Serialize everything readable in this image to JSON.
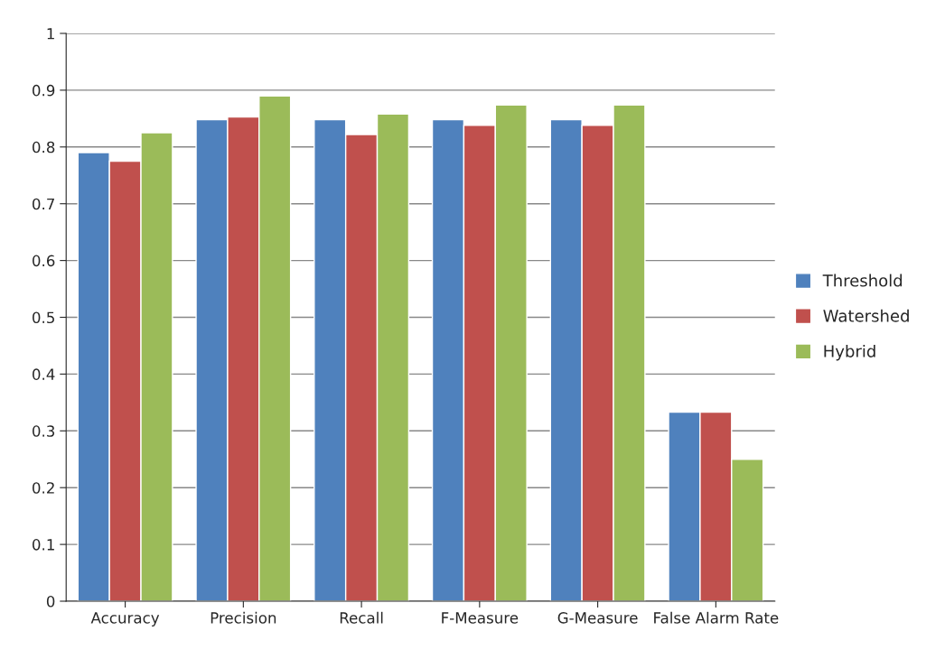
{
  "chart_data": {
    "type": "bar",
    "categories": [
      "Accuracy",
      "Precision",
      "Recall",
      "F-Measure",
      "G-Measure",
      "False Alarm Rate"
    ],
    "series": [
      {
        "name": "Threshold",
        "color": "#4f81bd",
        "values": [
          0.79,
          0.848,
          0.848,
          0.848,
          0.848,
          0.333
        ]
      },
      {
        "name": "Watershed",
        "color": "#c0504d",
        "values": [
          0.775,
          0.853,
          0.822,
          0.838,
          0.838,
          0.333
        ]
      },
      {
        "name": "Hybrid",
        "color": "#9bbb59",
        "values": [
          0.825,
          0.89,
          0.858,
          0.874,
          0.874,
          0.25
        ]
      }
    ],
    "ylim": [
      0,
      1
    ],
    "yticks": [
      0,
      0.1,
      0.2,
      0.3,
      0.4,
      0.5,
      0.6,
      0.7,
      0.8,
      0.9,
      1
    ],
    "grid": "y",
    "legend": "right"
  }
}
